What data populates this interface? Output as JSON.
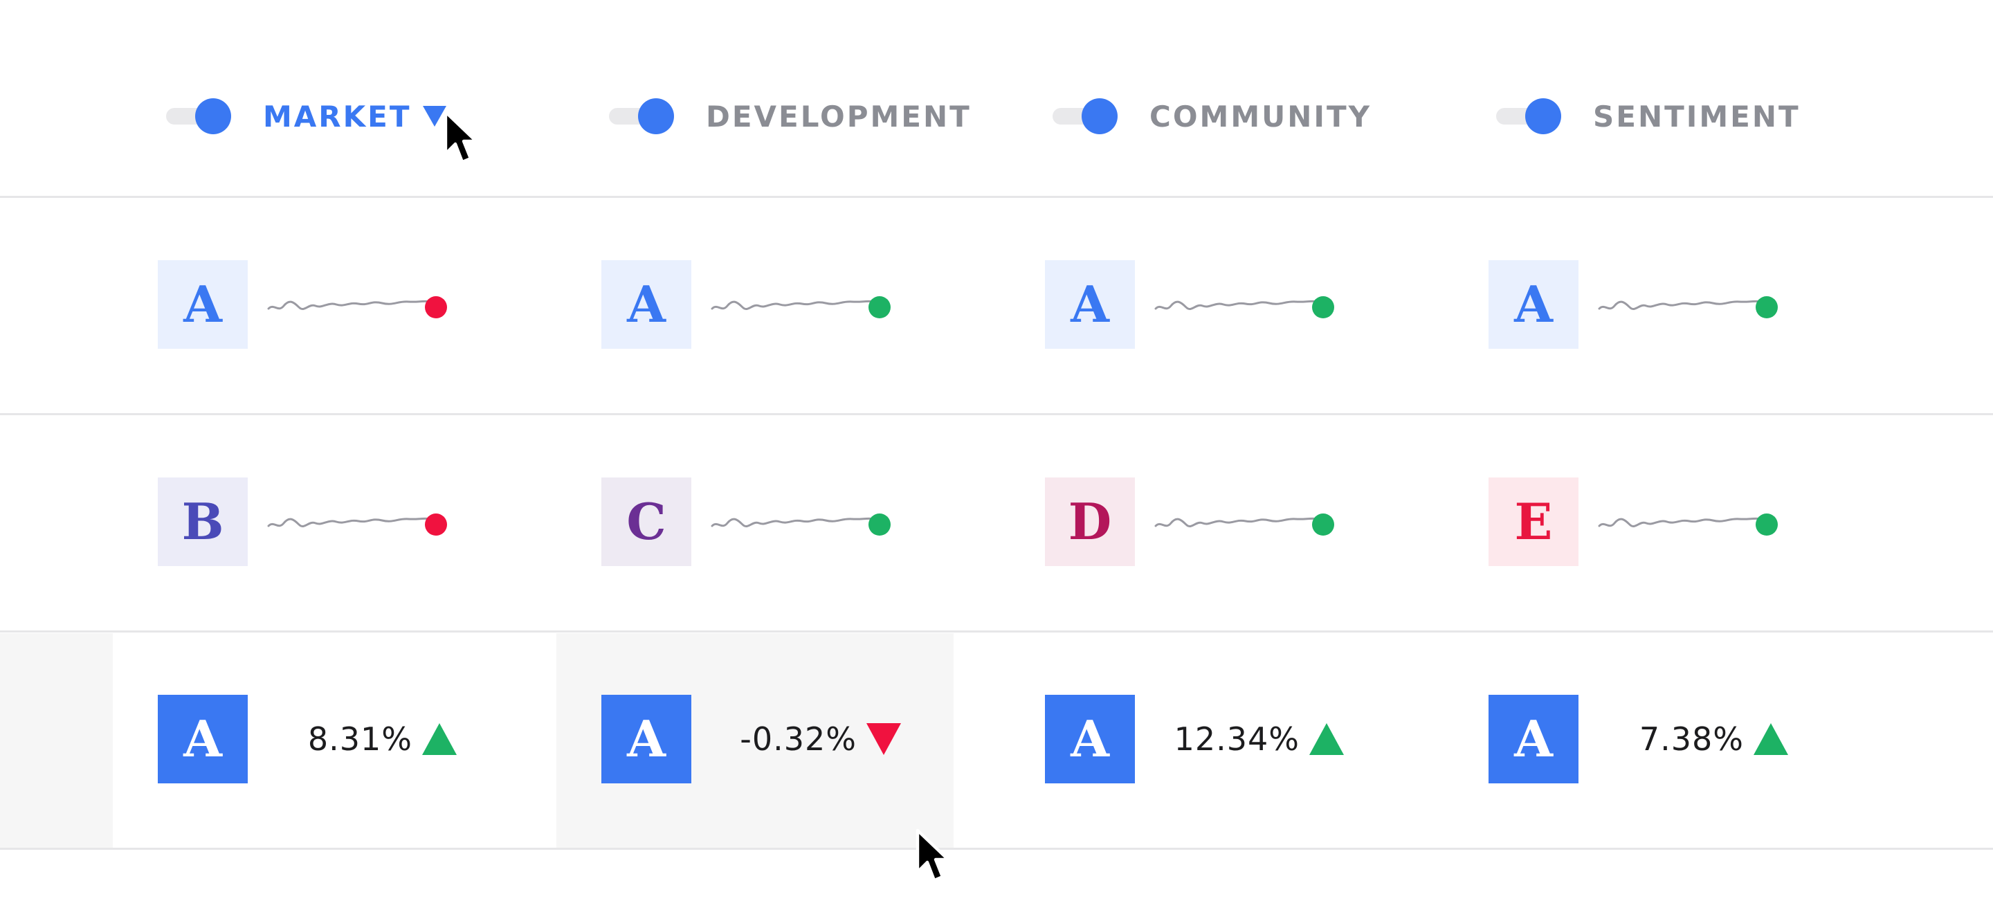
{
  "header": {
    "columns": [
      {
        "label": "MARKET",
        "active": true,
        "toggle_on": true
      },
      {
        "label": "DEVELOPMENT",
        "active": false,
        "toggle_on": true
      },
      {
        "label": "COMMUNITY",
        "active": false,
        "toggle_on": true
      },
      {
        "label": "SENTIMENT",
        "active": false,
        "toggle_on": true
      }
    ],
    "sort_direction": "descending"
  },
  "rows": [
    {
      "cells": [
        {
          "grade": "A",
          "trend_status": "down"
        },
        {
          "grade": "A",
          "trend_status": "up"
        },
        {
          "grade": "A",
          "trend_status": "up"
        },
        {
          "grade": "A",
          "trend_status": "up"
        }
      ]
    },
    {
      "cells": [
        {
          "grade": "B",
          "trend_status": "down"
        },
        {
          "grade": "C",
          "trend_status": "up"
        },
        {
          "grade": "D",
          "trend_status": "up"
        },
        {
          "grade": "E",
          "trend_status": "up"
        }
      ]
    },
    {
      "cells": [
        {
          "grade": "A",
          "change": "8.31%",
          "direction": "up"
        },
        {
          "grade": "A",
          "change": "-0.32%",
          "direction": "down"
        },
        {
          "grade": "A",
          "change": "12.34%",
          "direction": "up"
        },
        {
          "grade": "A",
          "change": "7.38%",
          "direction": "up"
        }
      ]
    }
  ],
  "colors": {
    "accent": "#3a78f2",
    "header_inactive": "#8b8d94",
    "up": "#1db264",
    "down": "#f0123f",
    "sparkline": "#9a9aa2",
    "divider": "#e6e6e8",
    "hover_bg": "#f6f6f6",
    "grade_A_bg": "#e9f0fe",
    "grade_A_fg": "#3a78f2",
    "grade_B_bg": "#ececf8",
    "grade_B_fg": "#4a4ab8",
    "grade_C_bg": "#eeeaf3",
    "grade_C_fg": "#6b2f94",
    "grade_D_bg": "#f8e8ee",
    "grade_D_fg": "#b3165a",
    "grade_E_bg": "#fde8ec",
    "grade_E_fg": "#e8163f",
    "grade_solid_bg": "#3a78f2",
    "grade_solid_fg": "#ffffff"
  },
  "icons": {
    "sort": "triangle-down",
    "up": "triangle-up",
    "down": "triangle-down",
    "pointer": "arrow-cursor"
  }
}
